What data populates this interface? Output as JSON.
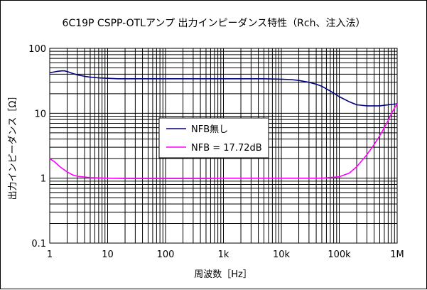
{
  "chart_data": {
    "type": "line",
    "title": "6C19P CSPP-OTLアンプ 出力インピーダンス特性（Rch、注入法）",
    "xlabel": "周波数［Hz］",
    "ylabel": "出力インピーダンス［Ω］",
    "x_scale": "log",
    "y_scale": "log",
    "xlim": [
      1,
      1000000
    ],
    "ylim": [
      0.1,
      100
    ],
    "grid": true,
    "legend_position": "center",
    "x_ticks": [
      {
        "value": 1,
        "label": "1"
      },
      {
        "value": 10,
        "label": "10"
      },
      {
        "value": 100,
        "label": "100"
      },
      {
        "value": 1000,
        "label": "1k"
      },
      {
        "value": 10000,
        "label": "10k"
      },
      {
        "value": 100000,
        "label": "100k"
      },
      {
        "value": 1000000,
        "label": "1M"
      }
    ],
    "y_ticks": [
      {
        "value": 0.1,
        "label": "0.1"
      },
      {
        "value": 1,
        "label": "1"
      },
      {
        "value": 10,
        "label": "10"
      },
      {
        "value": 100,
        "label": "100"
      }
    ],
    "series": [
      {
        "name": "NFB無し",
        "color": "#000080",
        "x": [
          1,
          1.3,
          1.6,
          1.8,
          2,
          2.5,
          3,
          4,
          5,
          7,
          10,
          15,
          20,
          30,
          50,
          100,
          200,
          500,
          1000,
          2000,
          5000,
          10000,
          15000,
          20000,
          30000,
          40000,
          50000,
          70000,
          100000,
          150000,
          200000,
          300000,
          500000,
          700000,
          1000000
        ],
        "y": [
          42,
          44,
          45,
          45,
          44,
          41,
          39,
          37,
          36,
          35,
          34.5,
          34,
          34,
          34,
          34,
          34,
          34,
          34,
          34,
          34,
          34,
          33.5,
          33,
          32,
          30,
          28,
          26,
          22,
          18,
          15,
          13.5,
          13,
          13,
          13.5,
          14
        ]
      },
      {
        "name": "NFB = 17.72dB",
        "color": "#ff00ff",
        "x": [
          1,
          1.2,
          1.5,
          2,
          2.5,
          3,
          4,
          5,
          7,
          10,
          20,
          50,
          100,
          200,
          500,
          1000,
          2000,
          5000,
          10000,
          20000,
          50000,
          100000,
          150000,
          200000,
          300000,
          400000,
          500000,
          600000,
          700000,
          800000,
          900000,
          1000000
        ],
        "y": [
          2,
          1.8,
          1.5,
          1.25,
          1.12,
          1.07,
          1.04,
          1.02,
          1.01,
          1.0,
          0.99,
          0.99,
          0.99,
          0.99,
          0.99,
          1.0,
          1.0,
          1.0,
          1.0,
          1.0,
          1.0,
          1.05,
          1.2,
          1.5,
          2.3,
          3.3,
          4.5,
          6.0,
          7.8,
          10,
          12,
          14
        ]
      }
    ]
  }
}
